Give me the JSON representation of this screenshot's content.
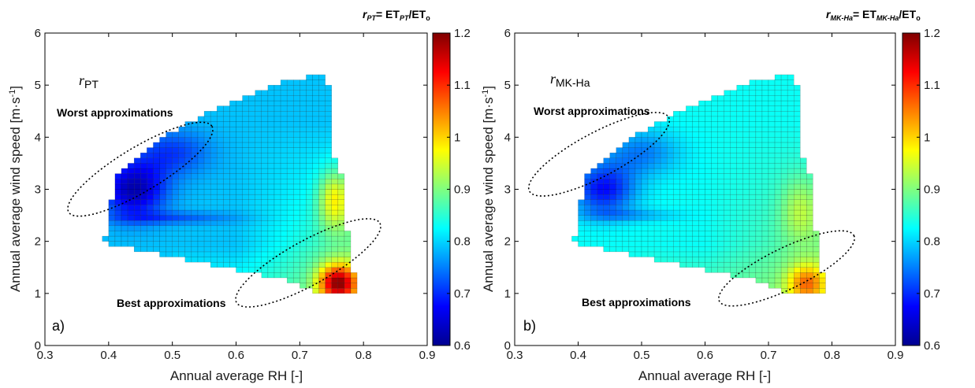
{
  "chart_data": [
    {
      "type": "heatmap",
      "panel_label": "a)",
      "annotation_label": "r",
      "annotation_label_sub": "PT",
      "colorbar_title": {
        "r": "r",
        "r_sub": "PT",
        "eq": "= ET",
        "et_sub": "PT",
        "rest": "/ET",
        "o_sub": "o"
      },
      "xlabel": "Annual average RH [-]",
      "ylabel": "Annual average wind speed [m·s",
      "ylabel_sup": "-1",
      "ylabel_end": "]",
      "xlim": [
        0.3,
        0.9
      ],
      "ylim": [
        0,
        6
      ],
      "x_ticks": [
        "0.3",
        "0.4",
        "0.5",
        "0.6",
        "0.7",
        "0.8",
        "0.9"
      ],
      "y_ticks": [
        "0",
        "1",
        "2",
        "3",
        "4",
        "5",
        "6"
      ],
      "colorbar_range": [
        0.6,
        1.2
      ],
      "colorbar_ticks": [
        "0.6",
        "0.7",
        "0.8",
        "0.9",
        "1",
        "1.1",
        "1.2"
      ],
      "colormap": "jet",
      "grid": false,
      "annotations": [
        {
          "text": "Worst approximations",
          "x": 0.48,
          "y": 3.2
        },
        {
          "text": "Best approximations",
          "x": 0.74,
          "y": 1.7
        }
      ],
      "cell_size": {
        "rh": 0.01,
        "wind": 0.1
      },
      "data_region": {
        "description": "cells filled between lower and upper wind bounds per RH column",
        "rh_columns": [
          0.39,
          0.4,
          0.41,
          0.42,
          0.43,
          0.44,
          0.45,
          0.46,
          0.47,
          0.48,
          0.49,
          0.5,
          0.51,
          0.52,
          0.53,
          0.54,
          0.55,
          0.56,
          0.57,
          0.58,
          0.59,
          0.6,
          0.61,
          0.62,
          0.63,
          0.64,
          0.65,
          0.66,
          0.67,
          0.68,
          0.69,
          0.7,
          0.71,
          0.72,
          0.73,
          0.74,
          0.75,
          0.76,
          0.77,
          0.78
        ],
        "wind_lower": [
          2.0,
          1.9,
          1.9,
          1.9,
          1.9,
          1.8,
          1.8,
          1.8,
          1.8,
          1.7,
          1.7,
          1.7,
          1.7,
          1.6,
          1.6,
          1.6,
          1.6,
          1.5,
          1.5,
          1.5,
          1.5,
          1.4,
          1.4,
          1.4,
          1.4,
          1.3,
          1.3,
          1.3,
          1.3,
          1.2,
          1.2,
          1.1,
          1.1,
          1.0,
          1.0,
          1.0,
          1.0,
          1.0,
          1.0,
          1.0
        ],
        "wind_upper": [
          2.1,
          2.8,
          3.3,
          3.4,
          3.5,
          3.6,
          3.7,
          3.8,
          3.9,
          4.0,
          4.1,
          4.1,
          4.2,
          4.3,
          4.3,
          4.4,
          4.5,
          4.5,
          4.6,
          4.6,
          4.7,
          4.7,
          4.8,
          4.8,
          4.9,
          4.9,
          5.0,
          5.0,
          5.1,
          5.1,
          5.1,
          5.1,
          5.2,
          5.2,
          5.2,
          5.0,
          3.6,
          3.3,
          2.2,
          1.4
        ]
      },
      "value_model": "approx r estimated from colors: low (~0.62) at RH 0.40-0.47 wind 2.7-3.4; ~0.8 across mid region; rising to ~1.1 at RH 0.75-0.78 wind 1.0-1.4"
    },
    {
      "type": "heatmap",
      "panel_label": "b)",
      "annotation_label": "r",
      "annotation_label_sub": "MK-Ha",
      "colorbar_title": {
        "r": "r",
        "r_sub": "MK-Ha",
        "eq": "= ET",
        "et_sub": "MK-Ha",
        "rest": "/ET",
        "o_sub": "o"
      },
      "xlabel": "Annual average RH [-]",
      "ylabel": "Annual average wind speed [m·s",
      "ylabel_sup": "-1",
      "ylabel_end": "]",
      "xlim": [
        0.3,
        0.9
      ],
      "ylim": [
        0,
        6
      ],
      "x_ticks": [
        "0.3",
        "0.4",
        "0.5",
        "0.6",
        "0.7",
        "0.8",
        "0.9"
      ],
      "y_ticks": [
        "0",
        "1",
        "2",
        "3",
        "4",
        "5",
        "6"
      ],
      "colorbar_range": [
        0.6,
        1.2
      ],
      "colorbar_ticks": [
        "0.6",
        "0.7",
        "0.8",
        "0.9",
        "1",
        "1.1",
        "1.2"
      ],
      "colormap": "jet",
      "grid": false,
      "annotations": [
        {
          "text": "Worst approximations",
          "x": 0.48,
          "y": 3.2
        },
        {
          "text": "Best approximations",
          "x": 0.74,
          "y": 1.5
        }
      ],
      "cell_size": {
        "rh": 0.01,
        "wind": 0.1
      },
      "value_model": "approx r estimated from colors: low (~0.65) at RH 0.40-0.47 wind 2.7-3.3; ~0.85 across mid region; rising to ~1.0-1.05 at RH 0.75-0.78 wind 1.0-1.4"
    }
  ]
}
